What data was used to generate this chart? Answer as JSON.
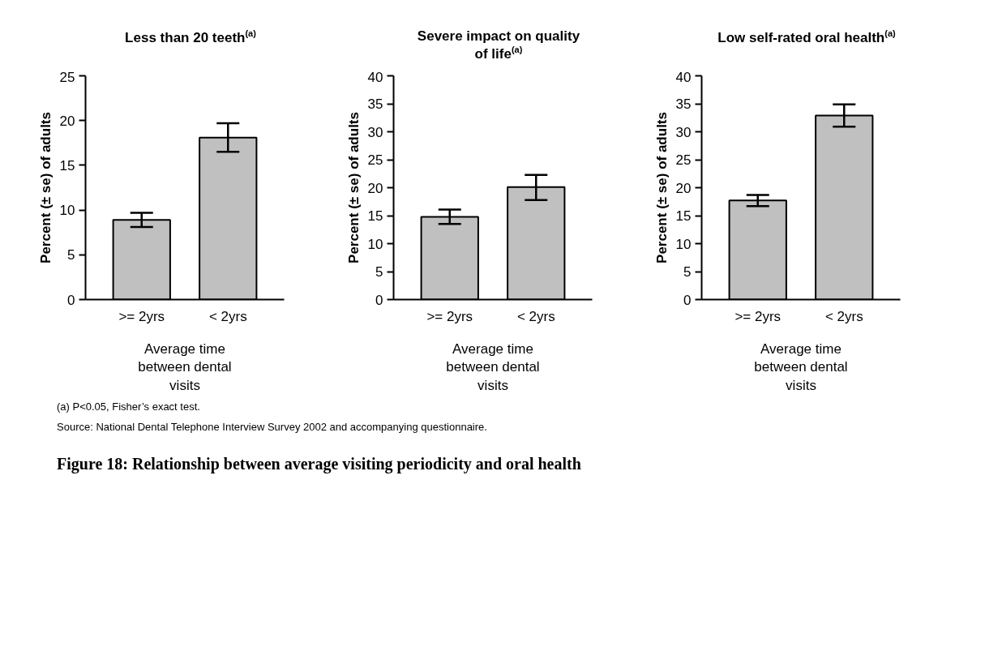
{
  "chart_data": [
    {
      "type": "bar",
      "title": "Less than 20 teeth$^{(a)}$",
      "categories": [
        ">= 2yrs",
        "< 2yrs"
      ],
      "values": [
        8.9,
        18.1
      ],
      "errors": [
        [
          8.1,
          9.7
        ],
        [
          16.5,
          19.7
        ]
      ],
      "color": "#c0c0c0",
      "ylim": [
        0,
        25
      ],
      "yticks": [
        0,
        5,
        10,
        15,
        20,
        25
      ],
      "ylabel": "Percent (± se) of adults",
      "xlabel": "Average time between dental visits"
    },
    {
      "type": "bar",
      "title": "Severe impact on quality of life$^{(a)}$",
      "categories": [
        ">= 2yrs",
        "< 2yrs"
      ],
      "values": [
        14.8,
        20.1
      ],
      "errors": [
        [
          13.5,
          16.1
        ],
        [
          17.8,
          22.3
        ]
      ],
      "color": "#c0c0c0",
      "ylim": [
        0,
        40
      ],
      "yticks": [
        0,
        5,
        10,
        15,
        20,
        25,
        30,
        35,
        40
      ],
      "ylabel": "Percent (± se) of adults",
      "xlabel": "Average time between dental visits"
    },
    {
      "type": "bar",
      "title": "Low self-rated oral health$^{(a)}$",
      "categories": [
        ">= 2yrs",
        "< 2yrs"
      ],
      "values": [
        17.7,
        32.9
      ],
      "errors": [
        [
          16.7,
          18.7
        ],
        [
          30.9,
          34.9
        ]
      ],
      "color": "#c0c0c0",
      "ylim": [
        0,
        40
      ],
      "yticks": [
        0,
        5,
        10,
        15,
        20,
        25,
        30,
        35,
        40
      ],
      "ylabel": "Percent (± se) of adults",
      "xlabel": "Average time between dental visits"
    },
    {
      "type": "other",
      "title": "Figure 18: Relationship between average visiting periodicity and oral health",
      "annotations": [
        "(a) P<0.05, Fisher’s exact test.",
        "Source: National Dental Telephone Interview Survey 2002 and accompanying questionnaire."
      ]
    }
  ]
}
